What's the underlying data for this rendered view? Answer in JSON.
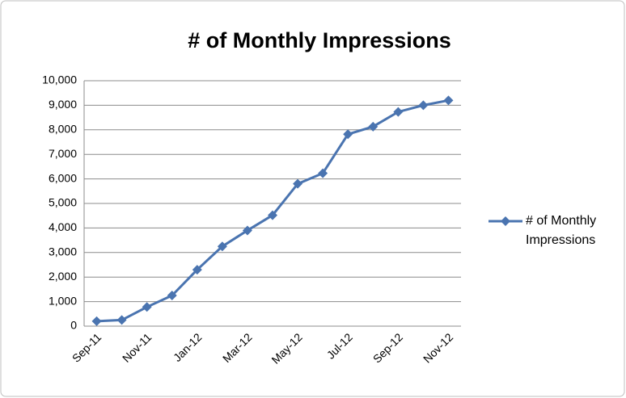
{
  "chart_data": {
    "type": "line",
    "title": "# of Monthly Impressions",
    "categories": [
      "Sep-11",
      null,
      "Nov-11",
      null,
      "Jan-12",
      null,
      "Mar-12",
      null,
      "May-12",
      null,
      "Jul-12",
      null,
      "Sep-12",
      null,
      "Nov-12"
    ],
    "series": [
      {
        "name": "# of Monthly Impressions",
        "color": "#4a74b0",
        "values": [
          200,
          250,
          780,
          1250,
          2300,
          3250,
          3900,
          4520,
          5800,
          6230,
          7820,
          8130,
          8730,
          9000,
          9200
        ]
      }
    ],
    "ylim": [
      0,
      10000
    ],
    "yticks": [
      0,
      {
        "value": 1000,
        "label": "1,000"
      },
      {
        "value": 2000,
        "label": "2,000"
      },
      {
        "value": 3000,
        "label": "3,000"
      },
      {
        "value": 4000,
        "label": "4,000"
      },
      {
        "value": 5000,
        "label": "5,000"
      },
      {
        "value": 6000,
        "label": "6,000"
      },
      {
        "value": 7000,
        "label": "7,000"
      },
      {
        "value": 8000,
        "label": "8,000"
      },
      {
        "value": 9000,
        "label": "9,000"
      },
      {
        "value": 10000,
        "label": "10,000"
      }
    ],
    "grid": true,
    "legend": "right"
  }
}
